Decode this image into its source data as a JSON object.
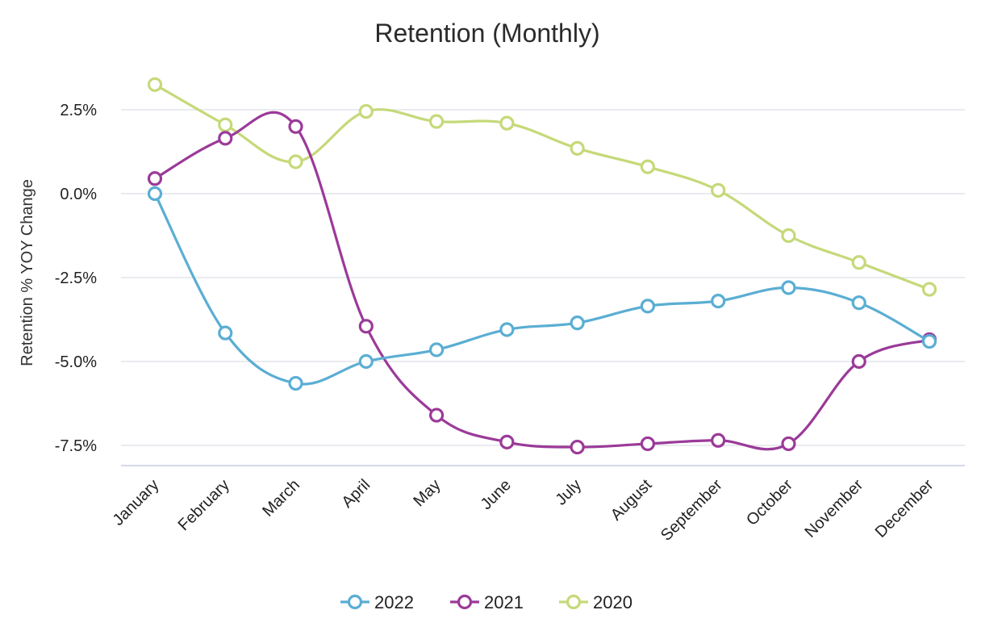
{
  "chart_data": {
    "type": "line",
    "title": "Retention (Monthly)",
    "xlabel": "",
    "ylabel": "Retention % YOY Change",
    "categories": [
      "January",
      "February",
      "March",
      "April",
      "May",
      "June",
      "July",
      "August",
      "September",
      "October",
      "November",
      "December"
    ],
    "ylim": [
      -8.1,
      3.5
    ],
    "yticks": [
      -7.5,
      -5.0,
      -2.5,
      0.0,
      2.5
    ],
    "ytick_labels": [
      "-7.5%",
      "-5.0%",
      "-2.5%",
      "0.0%",
      "2.5%"
    ],
    "grid": true,
    "legend_position": "bottom",
    "series": [
      {
        "name": "2022",
        "color": "#5aaed3",
        "values": [
          0.0,
          -4.15,
          -5.65,
          -5.0,
          -4.65,
          -4.05,
          -3.85,
          -3.35,
          -3.2,
          -2.8,
          -3.25,
          -4.4
        ]
      },
      {
        "name": "2021",
        "color": "#9b3a99",
        "values": [
          0.45,
          1.65,
          2.0,
          -3.95,
          -6.6,
          -7.4,
          -7.55,
          -7.45,
          -7.35,
          -7.45,
          -5.0,
          -4.35
        ]
      },
      {
        "name": "2020",
        "color": "#c5d979",
        "values": [
          3.25,
          2.05,
          0.95,
          2.45,
          2.15,
          2.1,
          1.35,
          0.8,
          0.1,
          -1.25,
          -2.05,
          -2.85
        ]
      }
    ]
  }
}
